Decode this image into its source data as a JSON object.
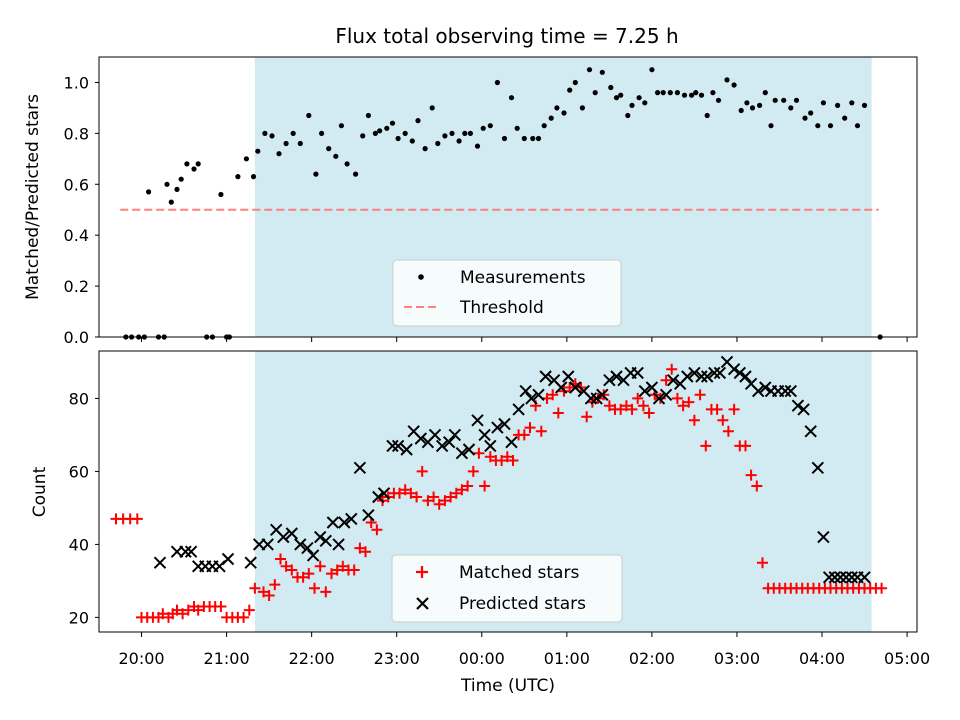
{
  "figure": {
    "title": "Flux total observing time = 7.25 h",
    "colors": {
      "shade": "#add8e6",
      "threshold": "#ff7f7f",
      "measurement": "#000000",
      "matched": "#ff0000",
      "predicted": "#000000"
    }
  },
  "chart_data": [
    {
      "type": "scatter",
      "ylabel": "Matched/Predicted stars",
      "xlabel": "",
      "xlim": [
        "19:30",
        "05:07"
      ],
      "ylim": [
        0,
        1.1
      ],
      "yticks": [
        "0.0",
        "0.2",
        "0.4",
        "0.6",
        "0.8",
        "1.0"
      ],
      "shaded_span": [
        "21:20",
        "04:35"
      ],
      "threshold": {
        "y": 0.5,
        "x_range": [
          "19:45",
          "04:40"
        ]
      },
      "legend": {
        "position": "bottom-center",
        "entries": [
          "Measurements",
          "Threshold"
        ]
      },
      "series": [
        {
          "name": "Measurements",
          "x": [
            "19:49",
            "19:53",
            "19:58",
            "20:02",
            "20:05",
            "20:12",
            "20:16",
            "20:18",
            "20:21",
            "20:25",
            "20:28",
            "20:32",
            "20:37",
            "20:40",
            "20:46",
            "20:50",
            "20:56",
            "21:00",
            "21:02",
            "21:08",
            "21:14",
            "21:19",
            "21:22",
            "21:27",
            "21:32",
            "21:37",
            "21:42",
            "21:47",
            "21:52",
            "21:58",
            "22:03",
            "22:07",
            "22:12",
            "22:17",
            "22:21",
            "22:25",
            "22:31",
            "22:36",
            "22:40",
            "22:45",
            "22:48",
            "22:53",
            "22:57",
            "23:01",
            "23:06",
            "23:11",
            "23:15",
            "23:20",
            "23:25",
            "23:29",
            "23:34",
            "23:39",
            "23:44",
            "23:48",
            "23:52",
            "23:57",
            "24:01",
            "24:06",
            "24:11",
            "24:16",
            "24:21",
            "24:25",
            "24:30",
            "24:36",
            "24:40",
            "24:44",
            "24:49",
            "24:53",
            "24:58",
            "25:02",
            "25:06",
            "25:11",
            "25:16",
            "25:20",
            "25:25",
            "25:31",
            "25:35",
            "25:38",
            "25:43",
            "25:46",
            "25:51",
            "25:55",
            "26:00",
            "26:04",
            "26:08",
            "26:13",
            "26:18",
            "26:23",
            "26:28",
            "26:31",
            "26:35",
            "26:39",
            "26:43",
            "26:47",
            "26:53",
            "26:58",
            "27:03",
            "27:07",
            "27:11",
            "27:16",
            "27:20",
            "27:24",
            "27:27",
            "27:33",
            "27:38",
            "27:42",
            "27:48",
            "27:52",
            "27:57",
            "28:01",
            "28:06",
            "28:11",
            "28:16",
            "28:21",
            "28:25",
            "28:30",
            "28:41"
          ],
          "y": [
            0,
            0,
            0,
            0,
            0.57,
            0,
            0,
            0.6,
            0.53,
            0.58,
            0.62,
            0.68,
            0.66,
            0.68,
            0,
            0,
            0.56,
            0,
            0,
            0.63,
            0.7,
            0.63,
            0.73,
            0.8,
            0.79,
            0.72,
            0.76,
            0.8,
            0.76,
            0.87,
            0.64,
            0.8,
            0.74,
            0.71,
            0.83,
            0.68,
            0.64,
            0.79,
            0.87,
            0.8,
            0.81,
            0.82,
            0.84,
            0.78,
            0.8,
            0.77,
            0.85,
            0.74,
            0.9,
            0.76,
            0.79,
            0.8,
            0.77,
            0.8,
            0.8,
            0.75,
            0.82,
            0.83,
            1.0,
            0.78,
            0.94,
            0.82,
            0.78,
            0.78,
            0.78,
            0.83,
            0.86,
            0.9,
            0.88,
            0.97,
            1.0,
            0.9,
            1.05,
            0.96,
            1.04,
            0.98,
            0.94,
            0.95,
            0.87,
            0.91,
            0.94,
            0.92,
            1.05,
            0.96,
            0.96,
            0.96,
            0.96,
            0.95,
            0.95,
            0.96,
            0.95,
            0.87,
            0.96,
            0.93,
            1.01,
            0.99,
            0.89,
            0.92,
            0.9,
            0.91,
            0.96,
            0.83,
            0.93,
            0.93,
            0.9,
            0.93,
            0.86,
            0.88,
            0.83,
            0.92,
            0.83,
            0.91,
            0.86,
            0.92,
            0.83,
            0.91,
            0
          ]
        }
      ]
    },
    {
      "type": "scatter",
      "ylabel": "Count",
      "xlabel": "Time (UTC)",
      "xlim": [
        "19:30",
        "05:07"
      ],
      "ylim": [
        16,
        93
      ],
      "yticks": [
        "20",
        "40",
        "60",
        "80"
      ],
      "xticks": [
        "20:00",
        "21:00",
        "22:00",
        "23:00",
        "00:00",
        "01:00",
        "02:00",
        "03:00",
        "04:00",
        "05:00"
      ],
      "shaded_span": [
        "21:20",
        "04:35"
      ],
      "legend": {
        "position": "bottom-center",
        "entries": [
          "Matched stars",
          "Predicted stars"
        ]
      },
      "series": [
        {
          "name": "Matched stars",
          "x": [
            "19:42",
            "19:47",
            "19:52",
            "19:57",
            "20:00",
            "20:04",
            "20:08",
            "20:12",
            "20:15",
            "20:19",
            "20:22",
            "20:25",
            "20:29",
            "20:33",
            "20:37",
            "20:40",
            "20:44",
            "20:48",
            "20:52",
            "20:56",
            "21:00",
            "21:04",
            "21:08",
            "21:12",
            "21:16",
            "21:20",
            "21:26",
            "21:30",
            "21:34",
            "21:38",
            "21:42",
            "21:46",
            "21:50",
            "21:54",
            "21:58",
            "22:02",
            "22:06",
            "22:10",
            "22:14",
            "22:18",
            "22:22",
            "22:26",
            "22:30",
            "22:34",
            "22:38",
            "22:42",
            "22:46",
            "22:50",
            "22:54",
            "22:58",
            "23:02",
            "23:06",
            "23:10",
            "23:14",
            "23:18",
            "23:22",
            "23:26",
            "23:30",
            "23:34",
            "23:38",
            "23:42",
            "23:46",
            "23:50",
            "23:54",
            "23:58",
            "24:02",
            "24:06",
            "24:10",
            "24:14",
            "24:18",
            "24:22",
            "24:26",
            "24:30",
            "24:34",
            "24:38",
            "24:42",
            "24:46",
            "24:50",
            "24:54",
            "24:58",
            "25:02",
            "25:06",
            "25:10",
            "25:14",
            "25:18",
            "25:22",
            "25:26",
            "25:30",
            "25:34",
            "25:38",
            "25:42",
            "25:46",
            "25:50",
            "25:54",
            "25:58",
            "26:02",
            "26:06",
            "26:10",
            "26:14",
            "26:18",
            "26:22",
            "26:26",
            "26:30",
            "26:34",
            "26:38",
            "26:42",
            "26:46",
            "26:50",
            "26:54",
            "26:58",
            "27:02",
            "27:06",
            "27:10",
            "27:14",
            "27:18",
            "27:22",
            "27:26",
            "27:30",
            "27:34",
            "27:38",
            "27:42",
            "27:46",
            "27:50",
            "27:54",
            "27:58",
            "28:02",
            "28:06",
            "28:10",
            "28:14",
            "28:18",
            "28:22",
            "28:26",
            "28:30",
            "28:34",
            "28:38",
            "28:42"
          ],
          "y": [
            47,
            47,
            47,
            47,
            20,
            20,
            20,
            20,
            21,
            20,
            21,
            22,
            21,
            22,
            23,
            22,
            23,
            23,
            23,
            23,
            20,
            20,
            20,
            20,
            22,
            28,
            27,
            26,
            29,
            36,
            34,
            33,
            31,
            31,
            32,
            28,
            34,
            27,
            32,
            33,
            34,
            33,
            33,
            39,
            38,
            46,
            44,
            52,
            53,
            54,
            54,
            55,
            54,
            53,
            60,
            52,
            53,
            51,
            52,
            53,
            54,
            55,
            56,
            60,
            65,
            56,
            64,
            63,
            63,
            64,
            63,
            70,
            70,
            72,
            78,
            71,
            80,
            81,
            76,
            82,
            83,
            84,
            83,
            75,
            79,
            80,
            81,
            78,
            77,
            77,
            78,
            77,
            80,
            78,
            76,
            81,
            80,
            85,
            88,
            80,
            78,
            79,
            74,
            81,
            67,
            77,
            77,
            74,
            71,
            77,
            67,
            67,
            59,
            56,
            35,
            28,
            28,
            28,
            28,
            28,
            28,
            28,
            28,
            28,
            28,
            28,
            28,
            28,
            28,
            28,
            28,
            28,
            28,
            28,
            28,
            28
          ],
          "visible_count": 116
        },
        {
          "name": "Predicted stars",
          "x": [
            "20:13",
            "20:25",
            "20:31",
            "20:35",
            "20:40",
            "20:45",
            "20:50",
            "20:55",
            "21:01",
            "21:17",
            "21:23",
            "21:29",
            "21:35",
            "21:40",
            "21:46",
            "21:52",
            "21:57",
            "22:01",
            "22:06",
            "22:10",
            "22:15",
            "22:19",
            "22:23",
            "22:28",
            "22:34",
            "22:40",
            "22:47",
            "22:51",
            "22:57",
            "23:01",
            "23:07",
            "23:12",
            "23:17",
            "23:22",
            "23:27",
            "23:32",
            "23:37",
            "23:41",
            "23:46",
            "23:51",
            "23:57",
            "24:02",
            "24:06",
            "24:11",
            "24:16",
            "24:21",
            "24:26",
            "24:31",
            "24:35",
            "24:40",
            "24:45",
            "24:51",
            "24:56",
            "25:01",
            "25:06",
            "25:12",
            "25:17",
            "25:21",
            "25:25",
            "25:30",
            "25:35",
            "25:40",
            "25:45",
            "25:50",
            "25:55",
            "26:00",
            "26:05",
            "26:10",
            "26:15",
            "26:20",
            "26:25",
            "26:30",
            "26:35",
            "26:39",
            "26:44",
            "26:48",
            "26:53",
            "26:58",
            "27:02",
            "27:06",
            "27:10",
            "27:15",
            "27:20",
            "27:24",
            "27:29",
            "27:34",
            "27:38",
            "27:43",
            "27:47",
            "27:52",
            "27:57",
            "28:01",
            "28:05",
            "28:09",
            "28:13",
            "28:17",
            "28:21",
            "28:25",
            "28:30"
          ],
          "y": [
            35,
            38,
            38,
            38,
            34,
            34,
            34,
            34,
            36,
            35,
            40,
            40,
            44,
            42,
            43,
            40,
            39,
            37,
            42,
            41,
            46,
            40,
            46,
            47,
            61,
            48,
            53,
            54,
            67,
            67,
            66,
            71,
            69,
            68,
            70,
            67,
            68,
            70,
            65,
            66,
            74,
            70,
            67,
            72,
            73,
            68,
            77,
            82,
            80,
            81,
            86,
            85,
            83,
            86,
            83,
            82,
            80,
            80,
            81,
            85,
            86,
            85,
            87,
            87,
            82,
            83,
            80,
            81,
            85,
            84,
            86,
            87,
            86,
            86,
            87,
            87,
            90,
            88,
            87,
            86,
            84,
            82,
            83,
            82,
            82,
            82,
            82,
            78,
            77,
            71,
            61,
            42,
            31,
            31,
            31,
            31,
            31,
            31,
            31
          ],
          "visible_count": 93
        }
      ]
    }
  ]
}
